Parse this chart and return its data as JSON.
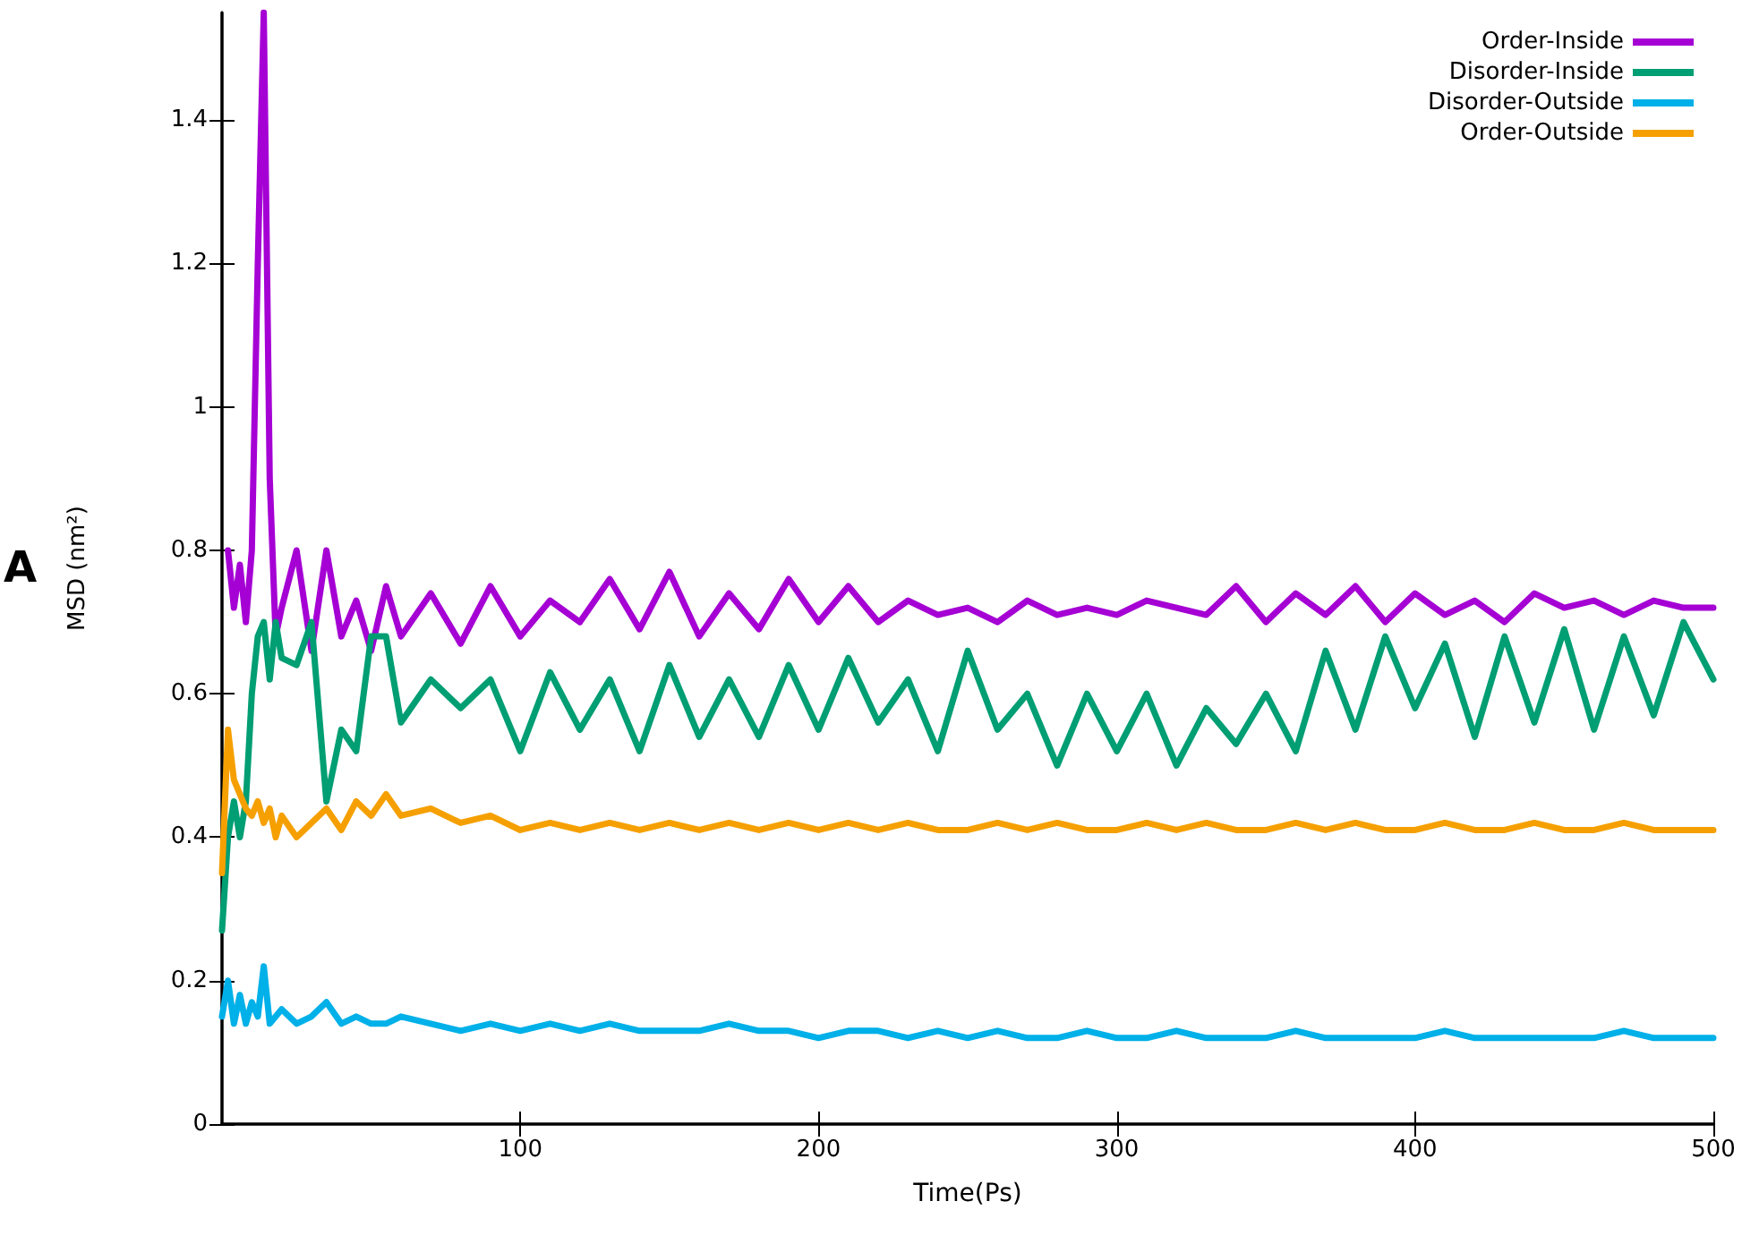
{
  "chart_data": {
    "type": "line",
    "xlabel": "Time(Ps)",
    "ylabel": "MSD (nm²)",
    "annotations": [
      "A"
    ],
    "xlim": [
      0,
      500
    ],
    "xticks": [
      100,
      200,
      300,
      400,
      500
    ],
    "ylim": [
      0,
      1.55
    ],
    "yticks": [
      0,
      0.2,
      0.4,
      0.6,
      0.8,
      1,
      1.2,
      1.4
    ],
    "grid": false,
    "legend": "top right",
    "marker": "none",
    "line_style": "solid",
    "x": [
      0,
      2,
      4,
      6,
      8,
      10,
      12,
      14,
      16,
      18,
      20,
      25,
      30,
      35,
      40,
      45,
      50,
      55,
      60,
      70,
      80,
      90,
      100,
      110,
      120,
      130,
      140,
      150,
      160,
      170,
      180,
      190,
      200,
      210,
      220,
      230,
      240,
      250,
      260,
      270,
      280,
      290,
      300,
      310,
      320,
      330,
      340,
      350,
      360,
      370,
      380,
      390,
      400,
      410,
      420,
      430,
      440,
      450,
      460,
      470,
      480,
      490,
      500
    ],
    "series": [
      {
        "name": "Order-Inside",
        "color": "#a500d4",
        "values": [
          null,
          0.8,
          0.72,
          0.78,
          0.7,
          0.8,
          1.2,
          1.55,
          0.9,
          0.68,
          0.72,
          0.8,
          0.66,
          0.8,
          0.68,
          0.73,
          0.66,
          0.75,
          0.68,
          0.74,
          0.67,
          0.75,
          0.68,
          0.73,
          0.7,
          0.76,
          0.69,
          0.77,
          0.68,
          0.74,
          0.69,
          0.76,
          0.7,
          0.75,
          0.7,
          0.73,
          0.71,
          0.72,
          0.7,
          0.73,
          0.71,
          0.72,
          0.71,
          0.73,
          0.72,
          0.71,
          0.75,
          0.7,
          0.74,
          0.71,
          0.75,
          0.7,
          0.74,
          0.71,
          0.73,
          0.7,
          0.74,
          0.72,
          0.73,
          0.71,
          0.73,
          0.72,
          0.72
        ]
      },
      {
        "name": "Disorder-Inside",
        "color": "#009e73",
        "values": [
          0.27,
          0.4,
          0.45,
          0.4,
          0.45,
          0.6,
          0.68,
          0.7,
          0.62,
          0.7,
          0.65,
          0.64,
          0.7,
          0.45,
          0.55,
          0.52,
          0.68,
          0.68,
          0.56,
          0.62,
          0.58,
          0.62,
          0.52,
          0.63,
          0.55,
          0.62,
          0.52,
          0.64,
          0.54,
          0.62,
          0.54,
          0.64,
          0.55,
          0.65,
          0.56,
          0.62,
          0.52,
          0.66,
          0.55,
          0.6,
          0.5,
          0.6,
          0.52,
          0.6,
          0.5,
          0.58,
          0.53,
          0.6,
          0.52,
          0.66,
          0.55,
          0.68,
          0.58,
          0.67,
          0.54,
          0.68,
          0.56,
          0.69,
          0.55,
          0.68,
          0.57,
          0.7,
          0.62
        ]
      },
      {
        "name": "Disorder-Outside",
        "color": "#00b0e8",
        "values": [
          0.15,
          0.2,
          0.14,
          0.18,
          0.14,
          0.17,
          0.15,
          0.22,
          0.14,
          0.15,
          0.16,
          0.14,
          0.15,
          0.17,
          0.14,
          0.15,
          0.14,
          0.14,
          0.15,
          0.14,
          0.13,
          0.14,
          0.13,
          0.14,
          0.13,
          0.14,
          0.13,
          0.13,
          0.13,
          0.14,
          0.13,
          0.13,
          0.12,
          0.13,
          0.13,
          0.12,
          0.13,
          0.12,
          0.13,
          0.12,
          0.12,
          0.13,
          0.12,
          0.12,
          0.13,
          0.12,
          0.12,
          0.12,
          0.13,
          0.12,
          0.12,
          0.12,
          0.12,
          0.13,
          0.12,
          0.12,
          0.12,
          0.12,
          0.12,
          0.13,
          0.12,
          0.12,
          0.12
        ]
      },
      {
        "name": "Order-Outside",
        "color": "#f5a000",
        "values": [
          0.35,
          0.55,
          0.48,
          0.46,
          0.44,
          0.43,
          0.45,
          0.42,
          0.44,
          0.4,
          0.43,
          0.4,
          0.42,
          0.44,
          0.41,
          0.45,
          0.43,
          0.46,
          0.43,
          0.44,
          0.42,
          0.43,
          0.41,
          0.42,
          0.41,
          0.42,
          0.41,
          0.42,
          0.41,
          0.42,
          0.41,
          0.42,
          0.41,
          0.42,
          0.41,
          0.42,
          0.41,
          0.41,
          0.42,
          0.41,
          0.42,
          0.41,
          0.41,
          0.42,
          0.41,
          0.42,
          0.41,
          0.41,
          0.42,
          0.41,
          0.42,
          0.41,
          0.41,
          0.42,
          0.41,
          0.41,
          0.42,
          0.41,
          0.41,
          0.42,
          0.41,
          0.41,
          0.41
        ]
      }
    ]
  }
}
